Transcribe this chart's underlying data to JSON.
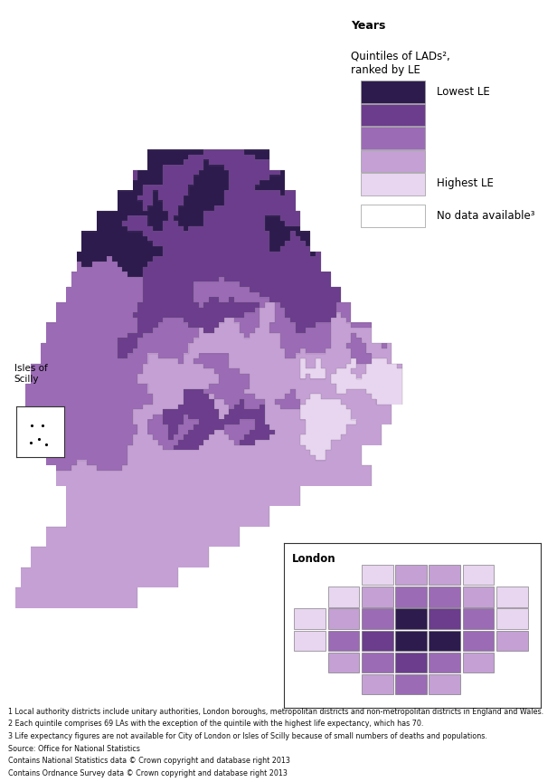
{
  "legend_title_bold": "Years",
  "legend_title_normal": "Quintiles of LADs²,\nranked by LE",
  "legend_colors": [
    "#2d1b4e",
    "#6b3d8c",
    "#9b6bb5",
    "#c4a0d4",
    "#e8d5f0",
    "#ffffff"
  ],
  "legend_labels_top": "Lowest LE",
  "legend_labels_bottom": "Highest LE",
  "legend_label_nodata": "No data available³",
  "quintile_colors": [
    "#2d1b4e",
    "#6b3d8c",
    "#9b6bb5",
    "#c4a0d4",
    "#e8d5f0"
  ],
  "no_data_color": "#ffffff",
  "border_color": "#666666",
  "border_linewidth": 0.3,
  "background_color": "#ffffff",
  "footnotes": [
    "1 Local authority districts include unitary authorities, London boroughs, metropolitan districts and non-metropolitan districts in England and Wales.",
    "2 Each quintile comprises 69 LAs with the exception of the quintile with the highest life expectancy, which has 70.",
    "3 Life expectancy figures are not available for City of London or Isles of Scilly because of small numbers of deaths and populations.",
    "Source: Office for National Statistics",
    "Contains National Statistics data © Crown copyright and database right 2013",
    "Contains Ordnance Survey data © Crown copyright and database right 2013"
  ],
  "isles_of_scilly_label": "Isles of\nScilly",
  "london_label": "London",
  "figsize": [
    6.16,
    8.64
  ],
  "dpi": 100
}
